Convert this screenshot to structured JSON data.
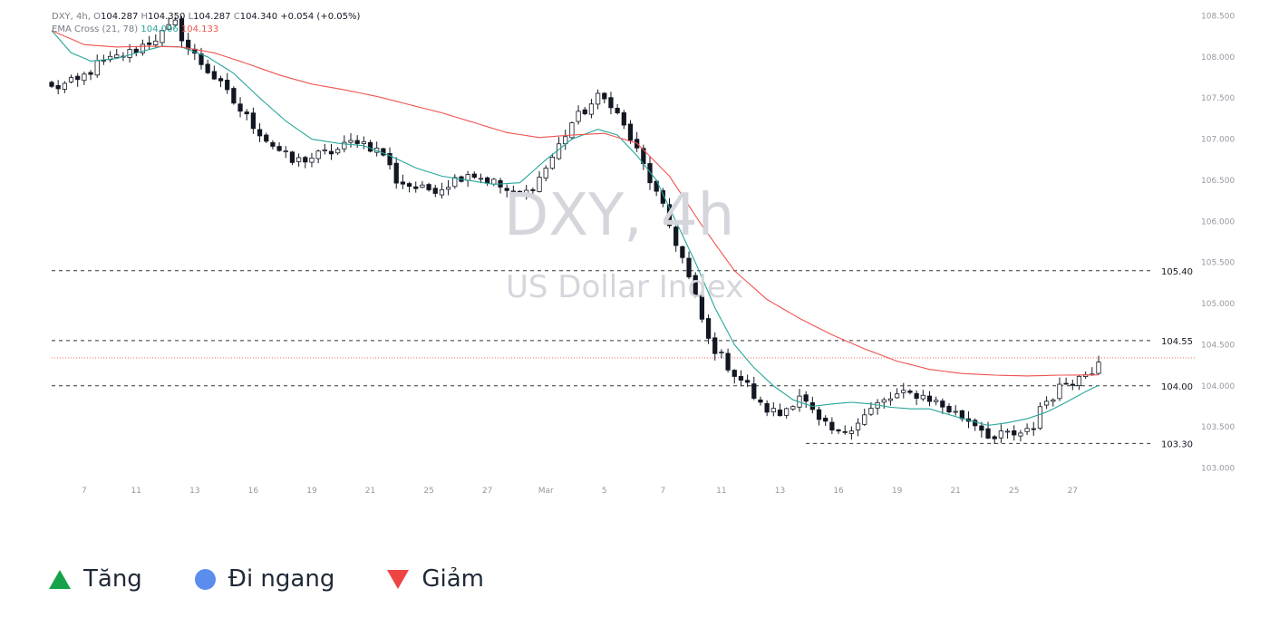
{
  "header": {
    "symbol": "DXY, 4h,",
    "o_label": "O",
    "o_value": "104.287",
    "h_label": "H",
    "h_value": "104.350",
    "l_label": "L",
    "l_value": "104.287",
    "c_label": "C",
    "c_value": "104.340",
    "change": "+0.054 (+0.05%)",
    "ema_label": "EMA Cross (21, 78)",
    "ema_fast_value": "104.006",
    "ema_slow_value": "104.133"
  },
  "watermark": {
    "title": "DXY, 4h",
    "subtitle": "US Dollar Index"
  },
  "colors": {
    "ema_fast": "#26a69a",
    "ema_slow": "#ef5350",
    "candle_body": "#131722",
    "up": "#16a34a",
    "flat": "#5b8def",
    "down": "#ef4444"
  },
  "chart_data": {
    "type": "line",
    "ylim": [
      102.94,
      108.56
    ],
    "y_ticks": [
      "108.500",
      "108.000",
      "107.500",
      "107.000",
      "106.500",
      "106.000",
      "105.500",
      "105.000",
      "104.500",
      "104.000",
      "103.500",
      "103.000"
    ],
    "y_tick_values": [
      108.5,
      108.0,
      107.5,
      107.0,
      106.5,
      106.0,
      105.5,
      105.0,
      104.5,
      104.0,
      103.5,
      103.0
    ],
    "x_ticks": [
      "7",
      "11",
      "13",
      "16",
      "19",
      "21",
      "25",
      "27",
      "Mar",
      "5",
      "7",
      "11",
      "13",
      "16",
      "19",
      "21",
      "25",
      "27"
    ],
    "x_tick_values": [
      5,
      13,
      22,
      31,
      40,
      49,
      58,
      67,
      76,
      85,
      94,
      103,
      112,
      121,
      130,
      139,
      148,
      157
    ],
    "x_count": 162,
    "levels": [
      {
        "value": 105.4,
        "label": "105.40",
        "style": "dashed"
      },
      {
        "value": 104.55,
        "label": "104.55",
        "style": "dashed"
      },
      {
        "value": 104.0,
        "label": "104.00",
        "style": "dashed"
      },
      {
        "value": 103.3,
        "label": "103.30",
        "style": "dashed-short"
      },
      {
        "value": 104.34,
        "label": "",
        "style": "dotted-red"
      }
    ],
    "price_anchors": [
      [
        0,
        107.62
      ],
      [
        4,
        107.7
      ],
      [
        7,
        107.9
      ],
      [
        12,
        108.05
      ],
      [
        17,
        108.28
      ],
      [
        19,
        108.4
      ],
      [
        21,
        108.1
      ],
      [
        25,
        107.75
      ],
      [
        29,
        107.35
      ],
      [
        33,
        107.0
      ],
      [
        37,
        106.72
      ],
      [
        40,
        106.78
      ],
      [
        44,
        106.87
      ],
      [
        47,
        107.0
      ],
      [
        51,
        106.82
      ],
      [
        53,
        106.5
      ],
      [
        57,
        106.38
      ],
      [
        60,
        106.42
      ],
      [
        64,
        106.6
      ],
      [
        68,
        106.47
      ],
      [
        71,
        106.32
      ],
      [
        73,
        106.35
      ],
      [
        75,
        106.53
      ],
      [
        77,
        106.78
      ],
      [
        80,
        107.2
      ],
      [
        84,
        107.5
      ],
      [
        86,
        107.45
      ],
      [
        88,
        107.15
      ],
      [
        90,
        106.85
      ],
      [
        92,
        106.5
      ],
      [
        94,
        106.15
      ],
      [
        97,
        105.55
      ],
      [
        99,
        105.05
      ],
      [
        101,
        104.55
      ],
      [
        103,
        104.35
      ],
      [
        105,
        104.15
      ],
      [
        107,
        104.0
      ],
      [
        109,
        103.75
      ],
      [
        112,
        103.65
      ],
      [
        115,
        103.9
      ],
      [
        118,
        103.55
      ],
      [
        121,
        103.4
      ],
      [
        124,
        103.58
      ],
      [
        127,
        103.77
      ],
      [
        130,
        103.88
      ],
      [
        133,
        103.9
      ],
      [
        135,
        103.85
      ],
      [
        137,
        103.75
      ],
      [
        140,
        103.62
      ],
      [
        142,
        103.55
      ],
      [
        145,
        103.35
      ],
      [
        147,
        103.42
      ],
      [
        149,
        103.38
      ],
      [
        151,
        103.5
      ],
      [
        152,
        103.75
      ],
      [
        154,
        103.88
      ],
      [
        156,
        104.05
      ],
      [
        158,
        104.1
      ],
      [
        160,
        104.2
      ],
      [
        161,
        104.34
      ]
    ],
    "series": [
      {
        "name": "EMA 21",
        "anchors": [
          [
            0,
            108.32
          ],
          [
            3,
            108.05
          ],
          [
            6,
            107.95
          ],
          [
            10,
            107.98
          ],
          [
            14,
            108.07
          ],
          [
            17,
            108.13
          ],
          [
            20,
            108.12
          ],
          [
            24,
            108.0
          ],
          [
            28,
            107.8
          ],
          [
            32,
            107.5
          ],
          [
            36,
            107.22
          ],
          [
            40,
            107.0
          ],
          [
            44,
            106.95
          ],
          [
            48,
            106.92
          ],
          [
            52,
            106.8
          ],
          [
            56,
            106.65
          ],
          [
            60,
            106.55
          ],
          [
            64,
            106.5
          ],
          [
            68,
            106.45
          ],
          [
            72,
            106.47
          ],
          [
            76,
            106.75
          ],
          [
            80,
            107.0
          ],
          [
            84,
            107.12
          ],
          [
            87,
            107.05
          ],
          [
            90,
            106.8
          ],
          [
            93,
            106.5
          ],
          [
            96,
            106.0
          ],
          [
            99,
            105.5
          ],
          [
            102,
            104.95
          ],
          [
            105,
            104.5
          ],
          [
            108,
            104.22
          ],
          [
            111,
            104.0
          ],
          [
            114,
            103.83
          ],
          [
            117,
            103.75
          ],
          [
            120,
            103.78
          ],
          [
            123,
            103.8
          ],
          [
            126,
            103.78
          ],
          [
            129,
            103.74
          ],
          [
            132,
            103.72
          ],
          [
            135,
            103.72
          ],
          [
            138,
            103.65
          ],
          [
            141,
            103.58
          ],
          [
            144,
            103.52
          ],
          [
            147,
            103.55
          ],
          [
            150,
            103.6
          ],
          [
            153,
            103.68
          ],
          [
            156,
            103.8
          ],
          [
            159,
            103.93
          ],
          [
            161,
            104.006
          ]
        ]
      },
      {
        "name": "EMA 78",
        "anchors": [
          [
            0,
            108.32
          ],
          [
            5,
            108.15
          ],
          [
            10,
            108.12
          ],
          [
            15,
            108.13
          ],
          [
            20,
            108.12
          ],
          [
            25,
            108.05
          ],
          [
            30,
            107.92
          ],
          [
            35,
            107.78
          ],
          [
            40,
            107.67
          ],
          [
            45,
            107.6
          ],
          [
            50,
            107.52
          ],
          [
            55,
            107.42
          ],
          [
            60,
            107.32
          ],
          [
            65,
            107.2
          ],
          [
            70,
            107.08
          ],
          [
            75,
            107.02
          ],
          [
            80,
            107.05
          ],
          [
            85,
            107.07
          ],
          [
            90,
            106.95
          ],
          [
            95,
            106.55
          ],
          [
            100,
            105.95
          ],
          [
            105,
            105.4
          ],
          [
            110,
            105.05
          ],
          [
            115,
            104.82
          ],
          [
            120,
            104.62
          ],
          [
            125,
            104.45
          ],
          [
            130,
            104.3
          ],
          [
            135,
            104.2
          ],
          [
            140,
            104.15
          ],
          [
            145,
            104.13
          ],
          [
            150,
            104.12
          ],
          [
            155,
            104.13
          ],
          [
            161,
            104.133
          ]
        ]
      }
    ]
  },
  "legend": {
    "items": [
      {
        "label": "Tăng",
        "icon": "triangle-up-icon"
      },
      {
        "label": "Đi ngang",
        "icon": "circle-icon"
      },
      {
        "label": "Giảm",
        "icon": "triangle-down-icon"
      }
    ]
  }
}
